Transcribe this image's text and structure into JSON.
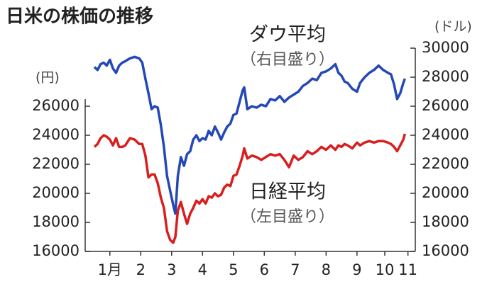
{
  "chart_data": {
    "type": "line",
    "title": "日米の株価の推移",
    "ylabel": "(円)",
    "y2label": "(ドル)",
    "x": [
      1.0,
      1.1,
      1.2,
      1.3,
      1.4,
      1.5,
      1.6,
      1.7,
      1.8,
      1.9,
      2.0,
      2.15,
      2.3,
      2.45,
      2.55,
      2.65,
      2.75,
      2.85,
      2.95,
      3.05,
      3.15,
      3.25,
      3.35,
      3.45,
      3.55,
      3.62,
      3.7,
      3.8,
      3.9,
      4.0,
      4.1,
      4.2,
      4.3,
      4.4,
      4.5,
      4.6,
      4.7,
      4.8,
      4.9,
      5.0,
      5.1,
      5.2,
      5.3,
      5.4,
      5.5,
      5.6,
      5.7,
      5.8,
      5.85,
      5.95,
      6.1,
      6.25,
      6.4,
      6.55,
      6.7,
      6.85,
      7.0,
      7.15,
      7.3,
      7.45,
      7.6,
      7.75,
      7.9,
      8.05,
      8.2,
      8.35,
      8.5,
      8.65,
      8.8,
      8.9,
      9.0,
      9.1,
      9.2,
      9.35,
      9.5,
      9.6,
      9.75,
      9.9,
      10.05,
      10.2,
      10.35,
      10.5,
      10.6,
      10.7,
      10.8,
      10.9,
      11.0,
      11.05
    ],
    "series": [
      {
        "name": "ダウ平均",
        "note": "（右目盛り）",
        "color": "#2448b5",
        "axis": "y2",
        "values": [
          28700,
          28500,
          28900,
          29000,
          28800,
          29200,
          28600,
          28300,
          28800,
          29000,
          29100,
          29300,
          29400,
          29300,
          29000,
          27900,
          26900,
          25800,
          26000,
          25900,
          24700,
          23200,
          21200,
          20200,
          19200,
          18600,
          21200,
          22500,
          21900,
          22700,
          22900,
          23700,
          24000,
          23600,
          23800,
          23700,
          24300,
          24000,
          24600,
          24200,
          23700,
          24200,
          24600,
          24800,
          25400,
          25500,
          26300,
          27100,
          27300,
          25800,
          26000,
          25900,
          26100,
          26000,
          26500,
          26400,
          26700,
          26300,
          26600,
          26800,
          27000,
          27400,
          27600,
          27900,
          27800,
          28300,
          28400,
          28600,
          28900,
          28300,
          28100,
          27700,
          27600,
          27200,
          27000,
          27600,
          28000,
          28300,
          28500,
          28800,
          28500,
          28300,
          28200,
          27500,
          26500,
          26900,
          27600,
          27900
        ]
      },
      {
        "name": "日経平均",
        "note": "（左目盛り）",
        "color": "#d91e1e",
        "axis": "y",
        "values": [
          23200,
          23400,
          23800,
          24000,
          23900,
          23700,
          23300,
          23800,
          23200,
          23200,
          23300,
          23800,
          23700,
          23400,
          23400,
          22600,
          21100,
          21300,
          21300,
          20700,
          19700,
          19000,
          17400,
          16800,
          16600,
          17000,
          18800,
          19400,
          18600,
          17900,
          18600,
          19000,
          19500,
          19300,
          19600,
          19300,
          19800,
          19700,
          20000,
          19800,
          19900,
          20400,
          20600,
          20500,
          21200,
          21300,
          21900,
          22600,
          23100,
          22400,
          22600,
          22500,
          22300,
          22500,
          22700,
          22600,
          22700,
          22300,
          21800,
          22600,
          22300,
          22500,
          22900,
          22700,
          22900,
          23200,
          23000,
          23300,
          23000,
          23300,
          23200,
          23400,
          23300,
          23100,
          23500,
          23300,
          23500,
          23600,
          23500,
          23600,
          23600,
          23500,
          23400,
          23200,
          22900,
          23300,
          23700,
          24100
        ]
      }
    ],
    "xlim": [
      1,
      11.25
    ],
    "xticks": [
      {
        "value": 1.5,
        "label": "1月"
      },
      {
        "value": 2.5,
        "label": "2"
      },
      {
        "value": 3.5,
        "label": "3"
      },
      {
        "value": 4.5,
        "label": "4"
      },
      {
        "value": 5.5,
        "label": "5"
      },
      {
        "value": 6.5,
        "label": "6"
      },
      {
        "value": 7.5,
        "label": "7"
      },
      {
        "value": 8.5,
        "label": "8"
      },
      {
        "value": 9.5,
        "label": "9"
      },
      {
        "value": 10.4,
        "label": "10"
      },
      {
        "value": 11.15,
        "label": "11"
      }
    ],
    "ylim": [
      16000,
      30000
    ],
    "yticks": [
      16000,
      18000,
      20000,
      22000,
      24000,
      26000
    ],
    "y2lim": [
      16000,
      30000
    ],
    "y2ticks": [
      16000,
      18000,
      20000,
      22000,
      24000,
      26000,
      28000,
      30000
    ]
  }
}
